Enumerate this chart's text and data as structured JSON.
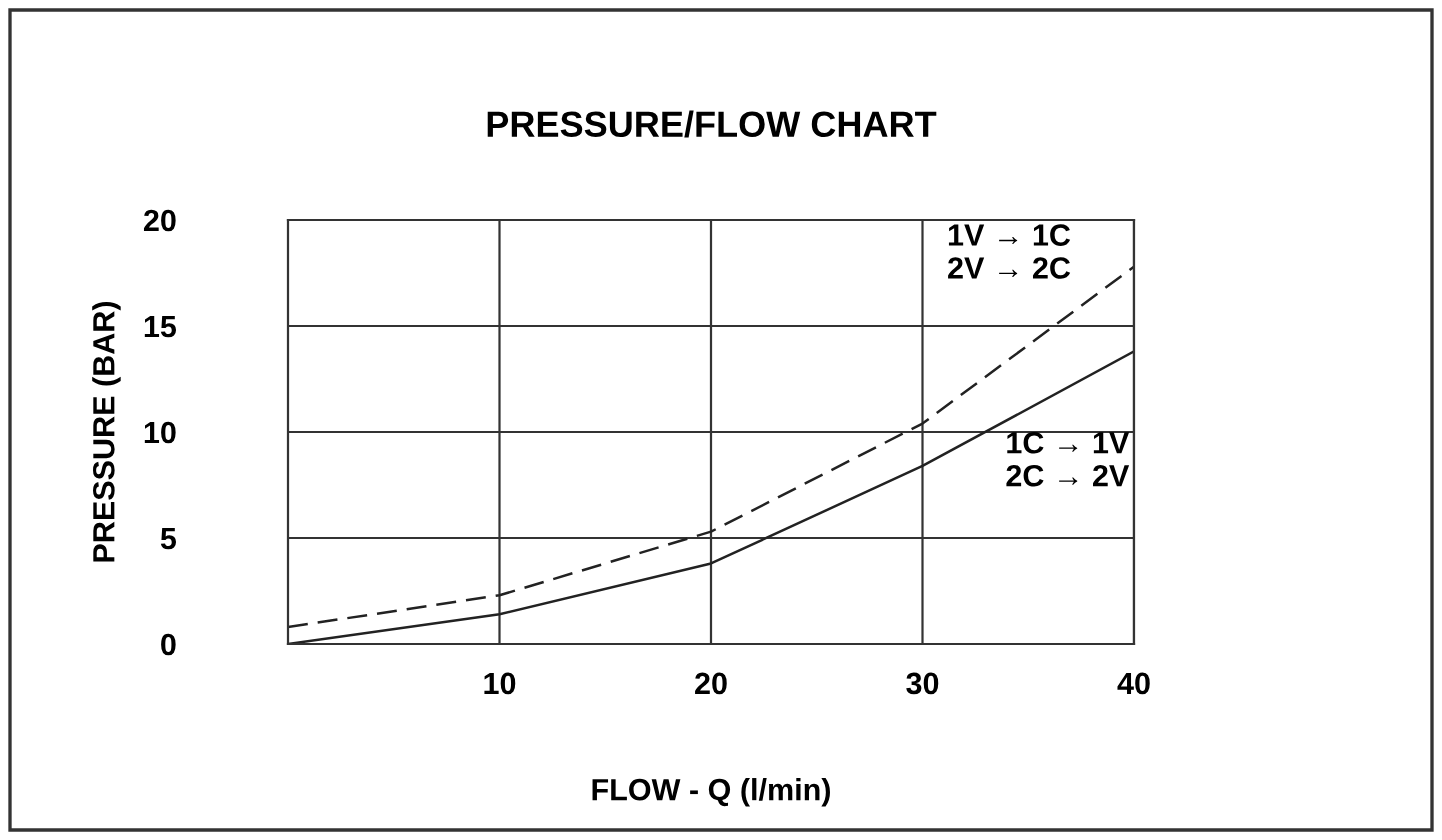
{
  "chart_data": {
    "type": "line",
    "title": "PRESSURE/FLOW CHART",
    "xlabel": "FLOW - Q (l/min)",
    "ylabel": "PRESSURE (BAR)",
    "x": [
      0,
      10,
      20,
      30,
      40
    ],
    "series": [
      {
        "name": "1V → 1C\n2V → 2C",
        "color": "#222222",
        "line_style": "dashed",
        "values": [
          0.8,
          2.3,
          5.3,
          10.4,
          17.8
        ]
      },
      {
        "name": "1C → 1V\n2C → 2V",
        "color": "#222222",
        "line_style": "solid",
        "values": [
          0,
          1.4,
          3.8,
          8.4,
          13.8
        ]
      }
    ],
    "xlim": [
      0,
      40
    ],
    "xticks": [
      10,
      20,
      30,
      40
    ],
    "ylim": [
      0,
      20
    ],
    "yticks": [
      0,
      5,
      10,
      15,
      20
    ],
    "grid": true,
    "legend": false
  }
}
